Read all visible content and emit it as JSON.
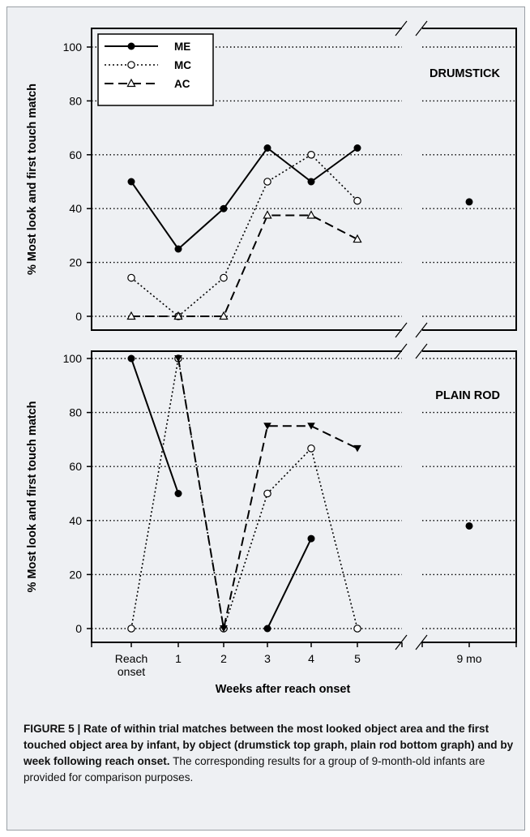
{
  "figure": {
    "caption_bold": "FIGURE 5 | Rate of within trial matches between the most looked object area and the first touched object area by infant, by object (drumstick top graph, plain rod bottom graph) and by week following reach onset.",
    "caption_rest": " The corresponding results for a group of 9-month-old infants are provided for comparison purposes."
  },
  "colors": {
    "background": "#eef0f3",
    "frame": "#9aa0a6",
    "line": "#000000",
    "open_marker": "#ffffff"
  },
  "chart_data": [
    {
      "type": "line",
      "title": "DRUMSTICK",
      "ylabel": "% Most look and first touch match",
      "ylim": [
        0,
        100
      ],
      "yticks": [
        0,
        20,
        40,
        60,
        80,
        100
      ],
      "categories": [
        "Reach onset",
        "1",
        "2",
        "3",
        "4",
        "5",
        "9 mo"
      ],
      "grid": "horizontal dotted",
      "legend": "top-left",
      "series": [
        {
          "name": "ME",
          "style": "solid",
          "marker": "filled-circle",
          "values": [
            50,
            25,
            40,
            62.5,
            50,
            62.5,
            42.5
          ]
        },
        {
          "name": "MC",
          "style": "dotted",
          "marker": "open-circle",
          "values": [
            14.3,
            0,
            14.3,
            50,
            60,
            42.9,
            null
          ]
        },
        {
          "name": "AC",
          "style": "dashed",
          "marker": "open-triangle",
          "values": [
            0,
            0,
            0,
            37.5,
            37.5,
            28.6,
            null
          ]
        }
      ]
    },
    {
      "type": "line",
      "title": "PLAIN ROD",
      "ylabel": "% Most look and first touch match",
      "xlabel": "Weeks after reach onset",
      "ylim": [
        0,
        100
      ],
      "yticks": [
        0,
        20,
        40,
        60,
        80,
        100
      ],
      "categories": [
        "Reach onset",
        "1",
        "2",
        "3",
        "4",
        "5",
        "9 mo"
      ],
      "grid": "horizontal dotted",
      "series": [
        {
          "name": "ME",
          "style": "solid",
          "marker": "filled-circle",
          "segments": [
            [
              [
                0,
                100
              ],
              [
                1,
                50
              ]
            ],
            [
              [
                3,
                0
              ],
              [
                4,
                33.3
              ]
            ]
          ],
          "points": [
            [
              0,
              100
            ],
            [
              1,
              50
            ],
            [
              2,
              0
            ],
            [
              3,
              0
            ],
            [
              4,
              33.3
            ],
            [
              6,
              38
            ]
          ]
        },
        {
          "name": "MC",
          "style": "dotted",
          "marker": "open-circle",
          "segments": [
            [
              [
                0,
                0
              ],
              [
                1,
                100
              ],
              [
                2,
                0
              ],
              [
                3,
                50
              ],
              [
                4,
                66.7
              ],
              [
                5,
                0
              ]
            ]
          ],
          "points": [
            [
              0,
              0
            ],
            [
              1,
              100
            ],
            [
              2,
              0
            ],
            [
              3,
              50
            ],
            [
              4,
              66.7
            ],
            [
              5,
              0
            ]
          ]
        },
        {
          "name": "AC",
          "style": "dashed",
          "marker": "filled-triangle-down",
          "segments": [
            [
              [
                1,
                100
              ],
              [
                2,
                0
              ],
              [
                3,
                75
              ],
              [
                4,
                75
              ],
              [
                5,
                66.7
              ]
            ]
          ],
          "points": [
            [
              1,
              100
            ],
            [
              2,
              0
            ],
            [
              3,
              75
            ],
            [
              4,
              75
            ],
            [
              5,
              66.7
            ]
          ]
        }
      ]
    }
  ]
}
